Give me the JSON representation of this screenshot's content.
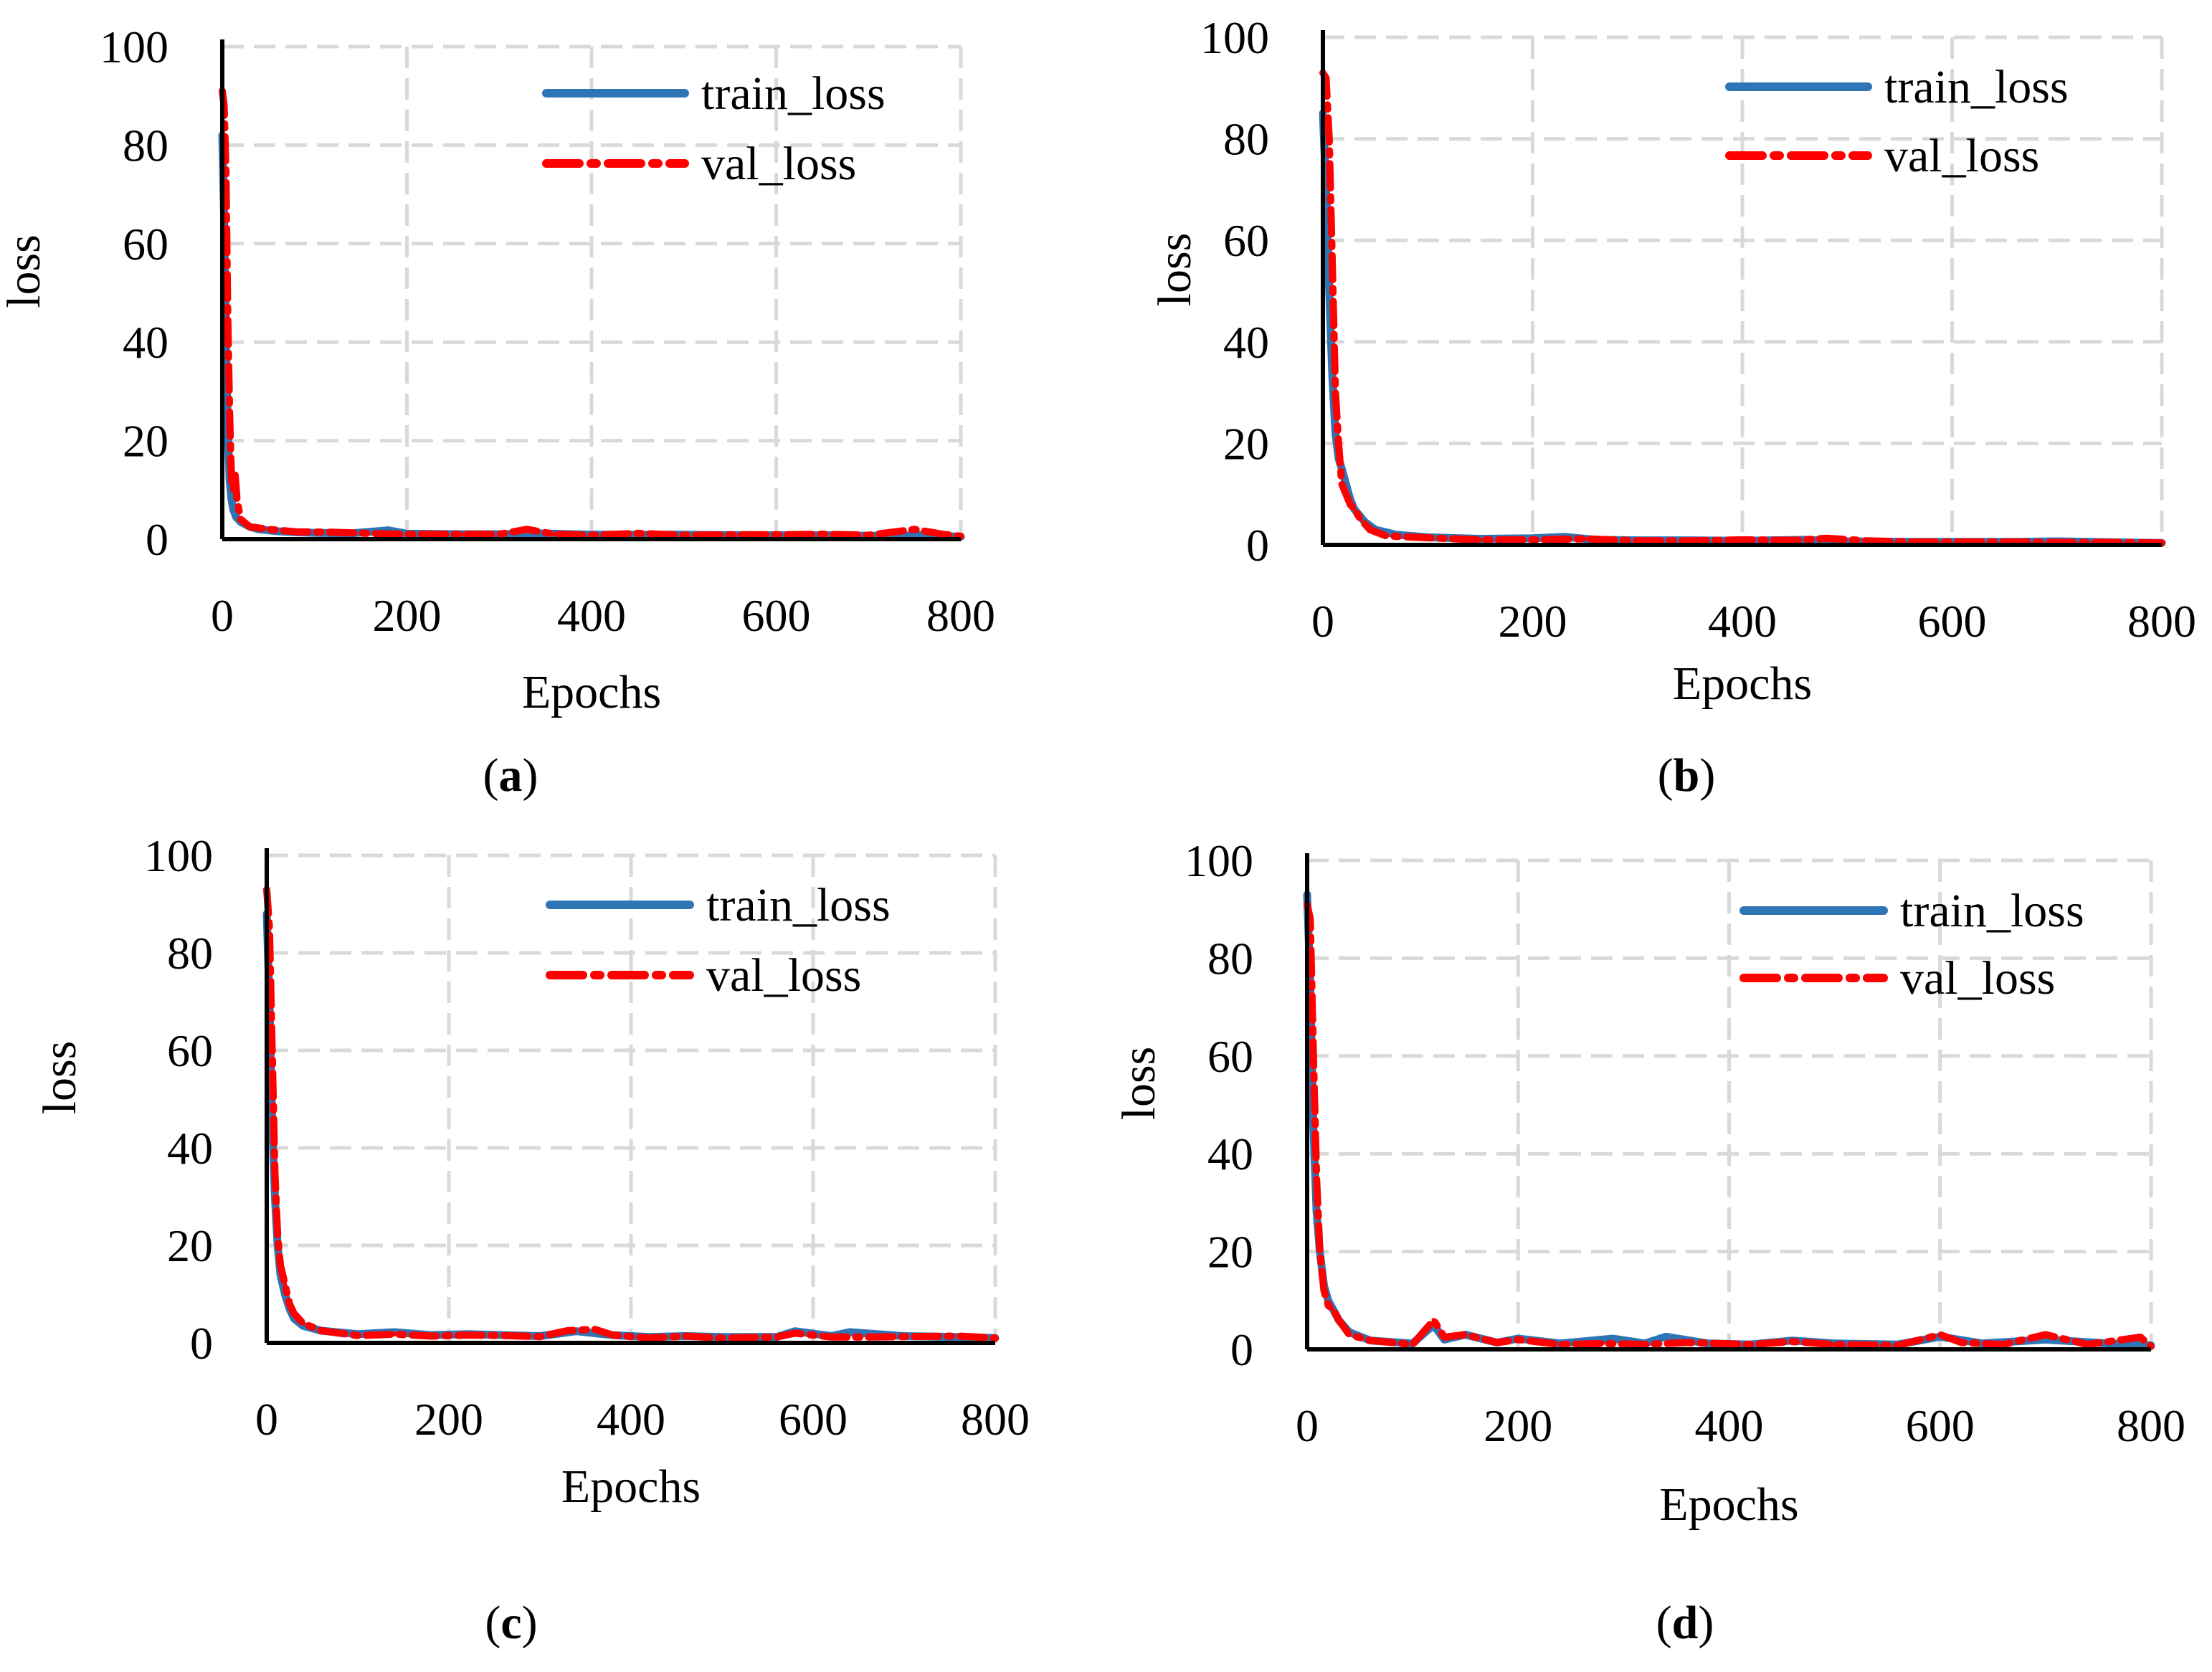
{
  "chart_data": [
    {
      "type": "line",
      "panel": "(a)",
      "panel_open": "(",
      "panel_letter": "a",
      "panel_close": ")",
      "title": "",
      "xlabel": "Epochs",
      "ylabel": "loss",
      "xlim": [
        0,
        800
      ],
      "ylim": [
        0,
        100
      ],
      "xticks": [
        "0",
        "200",
        "400",
        "600",
        "800"
      ],
      "yticks": [
        "0",
        "20",
        "40",
        "60",
        "80",
        "100"
      ],
      "grid": true,
      "legend_position": "top-right",
      "series": [
        {
          "name": "train_loss",
          "color": "#2e75b6",
          "style": "solid",
          "points": [
            [
              0,
              82
            ],
            [
              2,
              65
            ],
            [
              4,
              40
            ],
            [
              6,
              22
            ],
            [
              8,
              12
            ],
            [
              10,
              8
            ],
            [
              12,
              6
            ],
            [
              15,
              4.5
            ],
            [
              20,
              3.5
            ],
            [
              30,
              2.5
            ],
            [
              40,
              2.0
            ],
            [
              60,
              1.6
            ],
            [
              80,
              1.4
            ],
            [
              100,
              1.3
            ],
            [
              140,
              1.2
            ],
            [
              180,
              1.8
            ],
            [
              200,
              1.1
            ],
            [
              260,
              1.0
            ],
            [
              300,
              1.0
            ],
            [
              340,
              1.2
            ],
            [
              400,
              0.9
            ],
            [
              460,
              0.9
            ],
            [
              500,
              0.9
            ],
            [
              560,
              0.8
            ],
            [
              600,
              0.8
            ],
            [
              660,
              0.8
            ],
            [
              700,
              0.7
            ],
            [
              760,
              0.8
            ],
            [
              800,
              0.5
            ]
          ]
        },
        {
          "name": "val_loss",
          "color": "#ff0000",
          "style": "dash-dot",
          "points": [
            [
              0,
              91
            ],
            [
              2,
              88
            ],
            [
              4,
              75
            ],
            [
              6,
              45
            ],
            [
              8,
              25
            ],
            [
              10,
              12
            ],
            [
              12,
              10
            ],
            [
              14,
              13
            ],
            [
              16,
              8
            ],
            [
              20,
              4
            ],
            [
              30,
              2.5
            ],
            [
              50,
              2.0
            ],
            [
              80,
              1.5
            ],
            [
              120,
              1.4
            ],
            [
              170,
              1.1
            ],
            [
              200,
              1.0
            ],
            [
              260,
              1.0
            ],
            [
              300,
              1.0
            ],
            [
              330,
              2.0
            ],
            [
              360,
              1.0
            ],
            [
              400,
              0.8
            ],
            [
              450,
              1.2
            ],
            [
              500,
              0.8
            ],
            [
              560,
              0.9
            ],
            [
              600,
              0.9
            ],
            [
              650,
              1.0
            ],
            [
              700,
              0.8
            ],
            [
              750,
              2.0
            ],
            [
              780,
              1.0
            ],
            [
              800,
              0.6
            ]
          ]
        }
      ]
    },
    {
      "type": "line",
      "panel": "(b)",
      "panel_open": "(",
      "panel_letter": "b",
      "panel_close": ")",
      "title": "",
      "xlabel": "Epochs",
      "ylabel": "loss",
      "xlim": [
        0,
        800
      ],
      "ylim": [
        0,
        100
      ],
      "xticks": [
        "0",
        "200",
        "400",
        "600",
        "800"
      ],
      "yticks": [
        "0",
        "20",
        "40",
        "60",
        "80",
        "100"
      ],
      "grid": true,
      "legend_position": "top-right",
      "series": [
        {
          "name": "train_loss",
          "color": "#2e75b6",
          "style": "solid",
          "points": [
            [
              0,
              85
            ],
            [
              3,
              70
            ],
            [
              6,
              50
            ],
            [
              9,
              33
            ],
            [
              12,
              22
            ],
            [
              15,
              17
            ],
            [
              18,
              15
            ],
            [
              22,
              12
            ],
            [
              26,
              9
            ],
            [
              30,
              7
            ],
            [
              40,
              4.5
            ],
            [
              50,
              3
            ],
            [
              70,
              2
            ],
            [
              100,
              1.5
            ],
            [
              150,
              1.2
            ],
            [
              200,
              1.3
            ],
            [
              230,
              1.6
            ],
            [
              260,
              1.0
            ],
            [
              300,
              0.9
            ],
            [
              350,
              0.9
            ],
            [
              400,
              0.8
            ],
            [
              460,
              1.0
            ],
            [
              500,
              0.7
            ],
            [
              560,
              0.6
            ],
            [
              600,
              0.6
            ],
            [
              660,
              0.6
            ],
            [
              700,
              0.7
            ],
            [
              760,
              0.5
            ],
            [
              800,
              0.4
            ]
          ]
        },
        {
          "name": "val_loss",
          "color": "#ff0000",
          "style": "dash-dot",
          "points": [
            [
              0,
              93
            ],
            [
              3,
              92
            ],
            [
              6,
              80
            ],
            [
              9,
              55
            ],
            [
              12,
              30
            ],
            [
              15,
              20
            ],
            [
              18,
              12
            ],
            [
              22,
              10
            ],
            [
              26,
              8
            ],
            [
              30,
              7
            ],
            [
              36,
              5
            ],
            [
              45,
              3
            ],
            [
              60,
              1.8
            ],
            [
              100,
              1.4
            ],
            [
              150,
              1.0
            ],
            [
              200,
              1.0
            ],
            [
              250,
              1.2
            ],
            [
              300,
              0.8
            ],
            [
              350,
              0.8
            ],
            [
              400,
              1.0
            ],
            [
              450,
              0.9
            ],
            [
              480,
              1.3
            ],
            [
              520,
              0.8
            ],
            [
              560,
              0.6
            ],
            [
              620,
              0.6
            ],
            [
              660,
              0.6
            ],
            [
              700,
              0.5
            ],
            [
              760,
              0.5
            ],
            [
              800,
              0.4
            ]
          ]
        }
      ]
    },
    {
      "type": "line",
      "panel": "(c)",
      "panel_open": "(",
      "panel_letter": "c",
      "panel_close": ")",
      "title": "",
      "xlabel": "Epochs",
      "ylabel": "loss",
      "xlim": [
        0,
        800
      ],
      "ylim": [
        0,
        100
      ],
      "xticks": [
        "0",
        "200",
        "400",
        "600",
        "800"
      ],
      "yticks": [
        "0",
        "20",
        "40",
        "60",
        "80",
        "100"
      ],
      "grid": true,
      "legend_position": "top-right",
      "series": [
        {
          "name": "train_loss",
          "color": "#2e75b6",
          "style": "solid",
          "points": [
            [
              0,
              88
            ],
            [
              3,
              70
            ],
            [
              6,
              45
            ],
            [
              9,
              30
            ],
            [
              12,
              20
            ],
            [
              15,
              14
            ],
            [
              20,
              10
            ],
            [
              25,
              7
            ],
            [
              30,
              5
            ],
            [
              40,
              3.5
            ],
            [
              60,
              2.5
            ],
            [
              100,
              1.8
            ],
            [
              140,
              2.2
            ],
            [
              180,
              1.6
            ],
            [
              220,
              1.8
            ],
            [
              260,
              1.6
            ],
            [
              300,
              1.4
            ],
            [
              340,
              2.4
            ],
            [
              380,
              1.6
            ],
            [
              420,
              1.2
            ],
            [
              460,
              1.4
            ],
            [
              500,
              1.2
            ],
            [
              560,
              1.2
            ],
            [
              580,
              2.4
            ],
            [
              620,
              1.4
            ],
            [
              640,
              2.2
            ],
            [
              700,
              1.4
            ],
            [
              760,
              1.2
            ],
            [
              800,
              1.0
            ]
          ]
        },
        {
          "name": "val_loss",
          "color": "#ff0000",
          "style": "dash-dot",
          "points": [
            [
              0,
              93
            ],
            [
              3,
              85
            ],
            [
              6,
              60
            ],
            [
              9,
              35
            ],
            [
              12,
              22
            ],
            [
              15,
              16
            ],
            [
              20,
              12
            ],
            [
              25,
              8
            ],
            [
              30,
              6
            ],
            [
              40,
              4
            ],
            [
              60,
              2.5
            ],
            [
              100,
              1.5
            ],
            [
              140,
              1.8
            ],
            [
              180,
              1.4
            ],
            [
              220,
              1.6
            ],
            [
              260,
              1.5
            ],
            [
              300,
              1.3
            ],
            [
              330,
              2.5
            ],
            [
              360,
              2.8
            ],
            [
              380,
              1.6
            ],
            [
              420,
              1.0
            ],
            [
              460,
              1.4
            ],
            [
              500,
              1.0
            ],
            [
              560,
              1.2
            ],
            [
              580,
              2.0
            ],
            [
              620,
              1.2
            ],
            [
              660,
              1.2
            ],
            [
              700,
              1.3
            ],
            [
              760,
              1.4
            ],
            [
              800,
              1.0
            ]
          ]
        }
      ]
    },
    {
      "type": "line",
      "panel": "(d)",
      "panel_open": "(",
      "panel_letter": "d",
      "panel_close": ")",
      "title": "",
      "xlabel": "Epochs",
      "ylabel": "loss",
      "xlim": [
        0,
        800
      ],
      "ylim": [
        0,
        100
      ],
      "xticks": [
        "0",
        "200",
        "400",
        "600",
        "800"
      ],
      "yticks": [
        "0",
        "20",
        "40",
        "60",
        "80",
        "100"
      ],
      "grid": true,
      "legend_position": "top-right",
      "series": [
        {
          "name": "train_loss",
          "color": "#2e75b6",
          "style": "solid",
          "points": [
            [
              0,
              93
            ],
            [
              3,
              75
            ],
            [
              6,
              45
            ],
            [
              9,
              28
            ],
            [
              12,
              20
            ],
            [
              16,
              13
            ],
            [
              20,
              10
            ],
            [
              25,
              8
            ],
            [
              30,
              6
            ],
            [
              40,
              3.5
            ],
            [
              60,
              1.8
            ],
            [
              100,
              1.2
            ],
            [
              120,
              5
            ],
            [
              130,
              2
            ],
            [
              150,
              3
            ],
            [
              180,
              1.4
            ],
            [
              200,
              2.2
            ],
            [
              240,
              1.2
            ],
            [
              290,
              2.2
            ],
            [
              320,
              1.2
            ],
            [
              340,
              2.6
            ],
            [
              380,
              1.2
            ],
            [
              420,
              1.0
            ],
            [
              460,
              1.8
            ],
            [
              500,
              1.2
            ],
            [
              560,
              1.0
            ],
            [
              600,
              2.6
            ],
            [
              640,
              1.2
            ],
            [
              700,
              2.0
            ],
            [
              760,
              1.2
            ],
            [
              800,
              0.8
            ]
          ]
        },
        {
          "name": "val_loss",
          "color": "#ff0000",
          "style": "dash-dot",
          "points": [
            [
              0,
              91
            ],
            [
              3,
              88
            ],
            [
              6,
              60
            ],
            [
              9,
              35
            ],
            [
              12,
              20
            ],
            [
              16,
              12
            ],
            [
              20,
              9
            ],
            [
              25,
              8
            ],
            [
              30,
              6
            ],
            [
              40,
              3
            ],
            [
              60,
              1.8
            ],
            [
              100,
              1.0
            ],
            [
              120,
              6
            ],
            [
              130,
              2.5
            ],
            [
              150,
              3
            ],
            [
              180,
              1.4
            ],
            [
              200,
              2.0
            ],
            [
              240,
              1.0
            ],
            [
              280,
              1.2
            ],
            [
              320,
              1.0
            ],
            [
              360,
              1.4
            ],
            [
              420,
              1.0
            ],
            [
              460,
              1.6
            ],
            [
              500,
              1.0
            ],
            [
              560,
              0.8
            ],
            [
              600,
              3.0
            ],
            [
              620,
              1.4
            ],
            [
              660,
              1.0
            ],
            [
              700,
              3.0
            ],
            [
              740,
              1.0
            ],
            [
              790,
              2.5
            ],
            [
              800,
              0.6
            ]
          ]
        }
      ]
    }
  ]
}
